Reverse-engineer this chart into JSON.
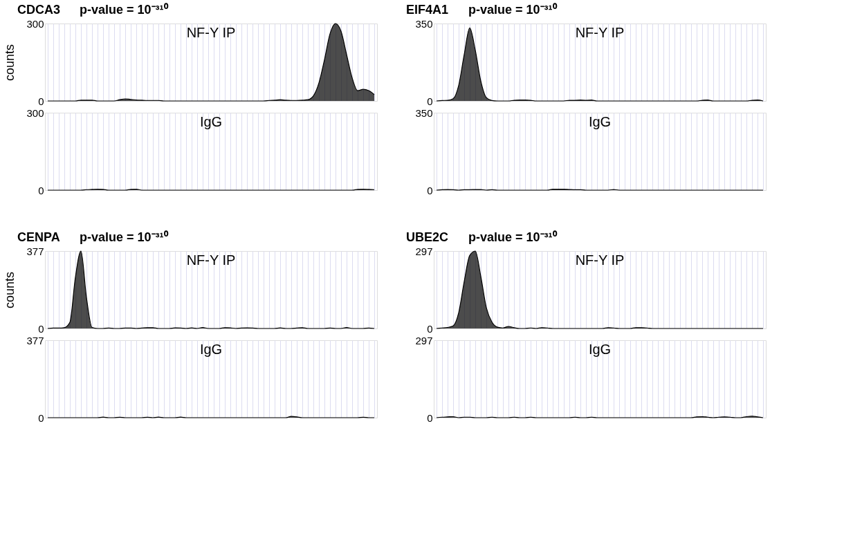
{
  "chart_data": [
    {
      "type": "area",
      "title": "CDCA3",
      "subtitle": "p-value = 10⁻³¹⁰",
      "ylabel": "counts",
      "annotations": [
        "NF-Y IP"
      ],
      "color": "#000000",
      "grid": "x",
      "tick_labels": "y",
      "ylim": [
        0,
        300
      ],
      "yticks": [
        0,
        300
      ],
      "categories": [
        null,
        null,
        null,
        null,
        null,
        null,
        null,
        null,
        null,
        null,
        null,
        null,
        null,
        null,
        null,
        null,
        null,
        null,
        null,
        null,
        null,
        null,
        null,
        null,
        null,
        null,
        null,
        null,
        null,
        null,
        null,
        null,
        null,
        null,
        null,
        null,
        null,
        null,
        null,
        null,
        null,
        null,
        null,
        null,
        null,
        null,
        null,
        null,
        null,
        null,
        null,
        null,
        null,
        null,
        null,
        null,
        null,
        null,
        null,
        null
      ],
      "values": [
        0,
        0,
        0,
        0,
        0,
        0,
        3,
        3,
        3,
        0,
        0,
        0,
        0,
        5,
        8,
        6,
        4,
        3,
        2,
        2,
        2,
        0,
        0,
        0,
        0,
        0,
        0,
        0,
        0,
        0,
        0,
        0,
        0,
        0,
        0,
        0,
        0,
        0,
        0,
        0,
        2,
        3,
        5,
        3,
        2,
        2,
        3,
        5,
        20,
        70,
        160,
        260,
        300,
        270,
        180,
        90,
        40,
        45,
        40,
        25
      ]
    },
    {
      "type": "area",
      "annotations": [
        "IgG"
      ],
      "color": "#000000",
      "grid": "x",
      "tick_labels": "y",
      "ylim": [
        0,
        300
      ],
      "yticks": [
        0,
        300
      ],
      "categories": [
        null,
        null,
        null,
        null,
        null,
        null,
        null,
        null,
        null,
        null,
        null,
        null,
        null,
        null,
        null,
        null,
        null,
        null,
        null,
        null,
        null,
        null,
        null,
        null,
        null,
        null,
        null,
        null,
        null,
        null,
        null,
        null,
        null,
        null,
        null,
        null,
        null,
        null,
        null,
        null,
        null,
        null,
        null,
        null,
        null,
        null,
        null,
        null,
        null,
        null,
        null,
        null,
        null,
        null,
        null,
        null,
        null,
        null,
        null,
        null
      ],
      "values": [
        0,
        0,
        0,
        0,
        0,
        0,
        0,
        2,
        3,
        4,
        3,
        0,
        0,
        0,
        0,
        3,
        4,
        0,
        0,
        0,
        0,
        0,
        0,
        0,
        0,
        0,
        0,
        0,
        0,
        0,
        0,
        0,
        0,
        0,
        0,
        0,
        0,
        0,
        0,
        0,
        0,
        0,
        0,
        0,
        0,
        0,
        0,
        0,
        0,
        0,
        0,
        0,
        0,
        0,
        0,
        0,
        3,
        4,
        3,
        2
      ]
    },
    {
      "type": "area",
      "title": "EIF4A1",
      "subtitle": "p-value = 10⁻³¹⁰",
      "annotations": [
        "NF-Y IP"
      ],
      "color": "#000000",
      "grid": "x",
      "tick_labels": "y",
      "ylim": [
        0,
        350
      ],
      "yticks": [
        0,
        350
      ],
      "categories": [
        null,
        null,
        null,
        null,
        null,
        null,
        null,
        null,
        null,
        null,
        null,
        null,
        null,
        null,
        null,
        null,
        null,
        null,
        null,
        null,
        null,
        null,
        null,
        null,
        null,
        null,
        null,
        null,
        null,
        null,
        null,
        null,
        null,
        null,
        null,
        null,
        null,
        null,
        null,
        null,
        null,
        null,
        null,
        null,
        null,
        null,
        null,
        null,
        null,
        null,
        null,
        null,
        null,
        null,
        null,
        null,
        null,
        null,
        null,
        null
      ],
      "values": [
        0,
        2,
        3,
        10,
        70,
        210,
        330,
        230,
        90,
        15,
        2,
        0,
        0,
        0,
        3,
        4,
        4,
        3,
        0,
        0,
        0,
        0,
        0,
        0,
        3,
        3,
        4,
        3,
        4,
        0,
        0,
        0,
        0,
        0,
        0,
        0,
        0,
        0,
        0,
        0,
        0,
        0,
        0,
        0,
        0,
        0,
        0,
        0,
        3,
        4,
        0,
        0,
        0,
        0,
        0,
        0,
        0,
        3,
        4,
        0
      ]
    },
    {
      "type": "area",
      "annotations": [
        "IgG"
      ],
      "color": "#000000",
      "grid": "x",
      "tick_labels": "y",
      "ylim": [
        0,
        350
      ],
      "yticks": [
        0,
        350
      ],
      "categories": [
        null,
        null,
        null,
        null,
        null,
        null,
        null,
        null,
        null,
        null,
        null,
        null,
        null,
        null,
        null,
        null,
        null,
        null,
        null,
        null,
        null,
        null,
        null,
        null,
        null,
        null,
        null,
        null,
        null,
        null,
        null,
        null,
        null,
        null,
        null,
        null,
        null,
        null,
        null,
        null,
        null,
        null,
        null,
        null,
        null,
        null,
        null,
        null,
        null,
        null,
        null,
        null,
        null,
        null,
        null,
        null,
        null,
        null,
        null,
        null
      ],
      "values": [
        0,
        2,
        3,
        2,
        0,
        2,
        2,
        3,
        3,
        0,
        2,
        0,
        0,
        0,
        0,
        0,
        0,
        0,
        0,
        0,
        0,
        4,
        4,
        4,
        3,
        2,
        2,
        0,
        0,
        0,
        0,
        0,
        3,
        0,
        0,
        0,
        0,
        0,
        0,
        0,
        0,
        0,
        0,
        0,
        0,
        0,
        0,
        0,
        0,
        0,
        0,
        0,
        0,
        0,
        0,
        0,
        0,
        0,
        0,
        0
      ]
    },
    {
      "type": "area",
      "title": "CENPA",
      "subtitle": "p-value = 10⁻³¹⁰",
      "ylabel": "counts",
      "annotations": [
        "NF-Y IP"
      ],
      "color": "#000000",
      "grid": "x",
      "tick_labels": "y",
      "ylim": [
        0,
        377
      ],
      "yticks": [
        0,
        377
      ],
      "categories": [
        null,
        null,
        null,
        null,
        null,
        null,
        null,
        null,
        null,
        null,
        null,
        null,
        null,
        null,
        null,
        null,
        null,
        null,
        null,
        null,
        null,
        null,
        null,
        null,
        null,
        null,
        null,
        null,
        null,
        null,
        null,
        null,
        null,
        null,
        null,
        null,
        null,
        null,
        null,
        null,
        null,
        null,
        null,
        null,
        null,
        null,
        null,
        null,
        null,
        null,
        null,
        null,
        null,
        null,
        null,
        null,
        null,
        null,
        null,
        null
      ],
      "values": [
        0,
        2,
        2,
        4,
        30,
        250,
        377,
        150,
        5,
        0,
        0,
        2,
        0,
        0,
        2,
        2,
        0,
        2,
        4,
        4,
        0,
        0,
        0,
        3,
        2,
        0,
        3,
        0,
        5,
        0,
        0,
        0,
        4,
        3,
        0,
        2,
        3,
        2,
        0,
        0,
        0,
        0,
        3,
        0,
        0,
        2,
        4,
        0,
        0,
        0,
        0,
        2,
        0,
        0,
        5,
        0,
        0,
        0,
        2,
        0
      ]
    },
    {
      "type": "area",
      "annotations": [
        "IgG"
      ],
      "color": "#000000",
      "grid": "x",
      "tick_labels": "y",
      "ylim": [
        0,
        377
      ],
      "yticks": [
        0,
        377
      ],
      "categories": [
        null,
        null,
        null,
        null,
        null,
        null,
        null,
        null,
        null,
        null,
        null,
        null,
        null,
        null,
        null,
        null,
        null,
        null,
        null,
        null,
        null,
        null,
        null,
        null,
        null,
        null,
        null,
        null,
        null,
        null,
        null,
        null,
        null,
        null,
        null,
        null,
        null,
        null,
        null,
        null,
        null,
        null,
        null,
        null,
        null,
        null,
        null,
        null,
        null,
        null,
        null,
        null,
        null,
        null,
        null,
        null,
        null,
        null,
        null,
        null
      ],
      "values": [
        0,
        0,
        0,
        0,
        0,
        0,
        0,
        0,
        0,
        0,
        3,
        0,
        0,
        2,
        0,
        0,
        0,
        0,
        2,
        0,
        3,
        0,
        0,
        0,
        3,
        0,
        0,
        0,
        0,
        0,
        0,
        0,
        0,
        0,
        0,
        0,
        0,
        0,
        0,
        0,
        0,
        0,
        0,
        0,
        6,
        4,
        0,
        0,
        0,
        0,
        0,
        0,
        0,
        0,
        0,
        0,
        0,
        2,
        0,
        0
      ]
    },
    {
      "type": "area",
      "title": "UBE2C",
      "subtitle": "p-value = 10⁻³¹⁰",
      "annotations": [
        "NF-Y IP"
      ],
      "color": "#000000",
      "grid": "x",
      "tick_labels": "y",
      "ylim": [
        0,
        297
      ],
      "yticks": [
        0,
        297
      ],
      "categories": [
        null,
        null,
        null,
        null,
        null,
        null,
        null,
        null,
        null,
        null,
        null,
        null,
        null,
        null,
        null,
        null,
        null,
        null,
        null,
        null,
        null,
        null,
        null,
        null,
        null,
        null,
        null,
        null,
        null,
        null,
        null,
        null,
        null,
        null,
        null,
        null,
        null,
        null,
        null,
        null,
        null,
        null,
        null,
        null,
        null,
        null,
        null,
        null,
        null,
        null,
        null,
        null,
        null,
        null,
        null,
        null,
        null,
        null,
        null,
        null
      ],
      "values": [
        0,
        2,
        4,
        10,
        60,
        180,
        280,
        297,
        200,
        80,
        25,
        5,
        2,
        8,
        3,
        0,
        0,
        2,
        0,
        3,
        2,
        0,
        0,
        0,
        0,
        0,
        0,
        0,
        0,
        0,
        0,
        3,
        2,
        0,
        0,
        0,
        3,
        3,
        2,
        0,
        0,
        0,
        0,
        0,
        0,
        0,
        0,
        0,
        0,
        0,
        0,
        0,
        0,
        0,
        0,
        0,
        0,
        0,
        0,
        0
      ]
    },
    {
      "type": "area",
      "annotations": [
        "IgG"
      ],
      "color": "#000000",
      "grid": "x",
      "tick_labels": "y",
      "ylim": [
        0,
        297
      ],
      "yticks": [
        0,
        297
      ],
      "categories": [
        null,
        null,
        null,
        null,
        null,
        null,
        null,
        null,
        null,
        null,
        null,
        null,
        null,
        null,
        null,
        null,
        null,
        null,
        null,
        null,
        null,
        null,
        null,
        null,
        null,
        null,
        null,
        null,
        null,
        null,
        null,
        null,
        null,
        null,
        null,
        null,
        null,
        null,
        null,
        null,
        null,
        null,
        null,
        null,
        null,
        null,
        null,
        null,
        null,
        null,
        null,
        null,
        null,
        null,
        null,
        null,
        null,
        null,
        null,
        null
      ],
      "values": [
        0,
        2,
        3,
        4,
        0,
        2,
        2,
        0,
        0,
        0,
        2,
        0,
        0,
        0,
        2,
        0,
        0,
        2,
        0,
        0,
        0,
        0,
        0,
        0,
        0,
        2,
        0,
        0,
        2,
        0,
        0,
        0,
        0,
        0,
        0,
        0,
        0,
        0,
        0,
        0,
        0,
        0,
        0,
        0,
        0,
        0,
        0,
        3,
        4,
        2,
        0,
        2,
        3,
        2,
        0,
        0,
        4,
        6,
        3,
        0
      ]
    }
  ]
}
